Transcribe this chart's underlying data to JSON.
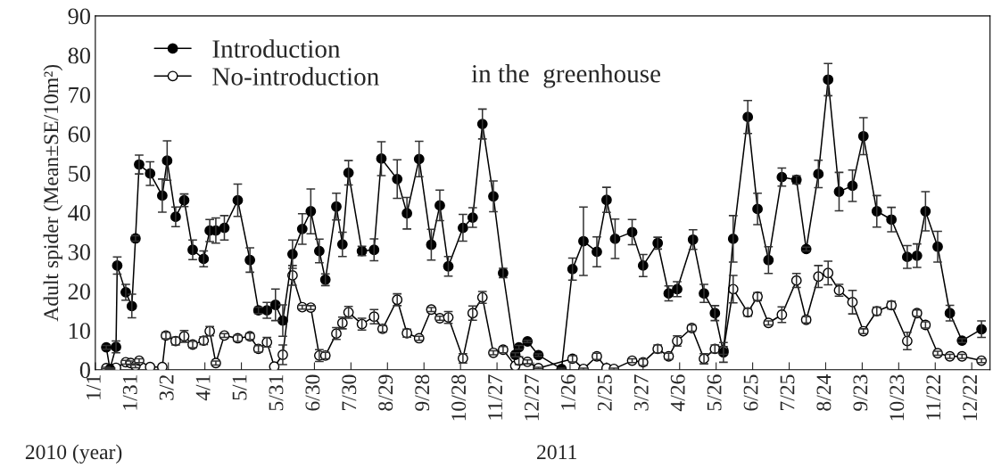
{
  "chart_data": {
    "type": "line",
    "ylabel": "Adult spider (Mean±SE/10m²)",
    "x": [
      "2010-01-10",
      "2010-01-13",
      "2010-01-18",
      "2010-01-19",
      "2010-01-26",
      "2010-01-31",
      "2010-02-03",
      "2010-02-06",
      "2010-02-15",
      "2010-02-25",
      "2010-03-01",
      "2010-03-08",
      "2010-03-15",
      "2010-03-22",
      "2010-03-31",
      "2010-04-05",
      "2010-04-10",
      "2010-04-17",
      "2010-04-28",
      "2010-05-08",
      "2010-05-15",
      "2010-05-22",
      "2010-05-29",
      "2010-06-04",
      "2010-06-12",
      "2010-06-20",
      "2010-06-27",
      "2010-07-04",
      "2010-07-09",
      "2010-07-18",
      "2010-07-23",
      "2010-07-28",
      "2010-08-08",
      "2010-08-18",
      "2010-08-24",
      "2010-09-06",
      "2010-09-14",
      "2010-09-24",
      "2010-10-04",
      "2010-10-11",
      "2010-10-18",
      "2010-10-30",
      "2010-11-07",
      "2010-11-15",
      "2010-11-24",
      "2010-12-02",
      "2010-12-12",
      "2010-12-15",
      "2010-12-22",
      "2010-12-31",
      "2011-01-19",
      "2011-01-28",
      "2011-02-06",
      "2011-02-17",
      "2011-02-25",
      "2011-03-04",
      "2011-03-18",
      "2011-03-27",
      "2011-04-08",
      "2011-04-17",
      "2011-04-24",
      "2011-05-07",
      "2011-05-16",
      "2011-05-25",
      "2011-06-01",
      "2011-06-09",
      "2011-06-21",
      "2011-06-29",
      "2011-07-08",
      "2011-07-19",
      "2011-07-31",
      "2011-08-08",
      "2011-08-18",
      "2011-08-26",
      "2011-09-04",
      "2011-09-15",
      "2011-09-24",
      "2011-10-05",
      "2011-10-17",
      "2011-10-30",
      "2011-11-07",
      "2011-11-14",
      "2011-11-24",
      "2011-12-04",
      "2011-12-14",
      "2011-12-30"
    ],
    "series": [
      {
        "name": "Introduction",
        "color": "#000000",
        "values": [
          5.7,
          0.2,
          5.8,
          26.5,
          19.7,
          16.2,
          33.4,
          52.2,
          49.9,
          44.3,
          53.2,
          38.9,
          43.1,
          30.5,
          28.2,
          35.4,
          35.4,
          36.1,
          43.1,
          27.9,
          15.1,
          15.1,
          16.5,
          12.5,
          29.4,
          35.8,
          40.3,
          30.2,
          22.9,
          41.5,
          31.9,
          50.1,
          30.2,
          30.5,
          53.7,
          48.5,
          39.8,
          53.6,
          31.8,
          41.8,
          26.3,
          36.1,
          38.7,
          62.5,
          44.1,
          24.6,
          3.8,
          5.7,
          7.2,
          3.7,
          0.2,
          25.6,
          32.7,
          30.0,
          43.2,
          33.3,
          35.0,
          26.5,
          32.2,
          19.4,
          20.5,
          33.1,
          19.4,
          14.4,
          4.4,
          33.3,
          64.3,
          40.9,
          27.9,
          49.0,
          48.3,
          30.7,
          49.8,
          73.8,
          45.3,
          46.8,
          59.4,
          40.3,
          38.2,
          28.7,
          29.0,
          40.3,
          31.3,
          14.4,
          7.4,
          10.3
        ],
        "errors": [
          0.5,
          0.2,
          1.5,
          2.2,
          2.0,
          3.0,
          0.7,
          2.4,
          3.0,
          4.2,
          5.0,
          2.5,
          1.6,
          2.5,
          2.0,
          2.8,
          3.2,
          3.1,
          4.1,
          3.1,
          0.8,
          2.0,
          4.0,
          4.0,
          3.6,
          3.9,
          5.7,
          3.0,
          1.5,
          3.4,
          3.1,
          3.1,
          1.2,
          2.8,
          4.3,
          4.9,
          4.0,
          4.5,
          3.9,
          3.9,
          2.5,
          3.4,
          2.5,
          3.8,
          3.9,
          1.2,
          0.5,
          0.5,
          0.3,
          0.3,
          0.2,
          2.8,
          8.7,
          3.8,
          3.2,
          5.0,
          3.2,
          2.8,
          1.5,
          1.9,
          1.9,
          2.5,
          2.3,
          1.9,
          2.5,
          5.9,
          4.2,
          4.0,
          3.4,
          2.3,
          1.0,
          0.5,
          3.5,
          4.1,
          4.9,
          4.0,
          4.7,
          4.0,
          3.1,
          2.9,
          3.0,
          5.0,
          3.9,
          2.0,
          0.5,
          2.1
        ]
      },
      {
        "name": "No-introduction",
        "color": "#000000",
        "x": [
          "2010-01-10",
          "2010-01-14",
          "2010-01-18",
          "2010-01-26",
          "2010-01-30",
          "2010-02-03",
          "2010-02-06",
          "2010-02-15",
          "2010-02-25",
          "2010-02-28",
          "2010-03-08",
          "2010-03-15",
          "2010-03-22",
          "2010-03-31",
          "2010-04-05",
          "2010-04-10",
          "2010-04-17",
          "2010-04-28",
          "2010-05-08",
          "2010-05-15",
          "2010-05-22",
          "2010-05-28",
          "2010-06-04",
          "2010-06-12",
          "2010-06-20",
          "2010-06-27",
          "2010-07-04",
          "2010-07-09",
          "2010-07-18",
          "2010-07-23",
          "2010-07-28",
          "2010-08-08",
          "2010-08-18",
          "2010-08-25",
          "2010-09-06",
          "2010-09-14",
          "2010-09-24",
          "2010-10-04",
          "2010-10-11",
          "2010-10-18",
          "2010-10-30",
          "2010-11-07",
          "2010-11-15",
          "2010-11-24",
          "2010-12-02",
          "2010-12-12",
          "2010-12-15",
          "2010-12-22",
          "2010-12-31",
          "2011-01-28",
          "2011-02-06",
          "2011-02-17",
          "2011-02-25",
          "2011-03-03",
          "2011-03-18",
          "2011-03-27",
          "2011-04-08",
          "2011-04-17",
          "2011-04-24",
          "2011-05-06",
          "2011-05-16",
          "2011-05-25",
          "2011-06-01",
          "2011-06-09",
          "2011-06-21",
          "2011-06-29",
          "2011-07-08",
          "2011-07-19",
          "2011-07-31",
          "2011-08-08",
          "2011-08-18",
          "2011-08-26",
          "2011-09-04",
          "2011-09-15",
          "2011-09-24",
          "2011-10-05",
          "2011-10-17",
          "2011-10-30",
          "2011-11-07",
          "2011-11-14",
          "2011-11-24",
          "2011-12-04",
          "2011-12-14",
          "2011-12-30"
        ],
        "values": [
          0.4,
          0.2,
          0.5,
          1.9,
          1.7,
          1.0,
          2.3,
          0.7,
          0.7,
          8.7,
          7.3,
          8.5,
          6.4,
          7.4,
          9.8,
          1.7,
          8.7,
          8.0,
          8.5,
          5.3,
          7.0,
          0.8,
          3.8,
          24.0,
          15.9,
          15.8,
          3.6,
          3.6,
          9.2,
          11.9,
          14.6,
          11.6,
          13.5,
          10.4,
          17.8,
          9.3,
          8.0,
          15.3,
          13.1,
          13.3,
          2.9,
          14.4,
          18.4,
          4.3,
          5.1,
          1.0,
          2.3,
          2.0,
          0.4,
          2.8,
          0.2,
          3.4,
          0.4,
          0.2,
          2.3,
          1.9,
          5.3,
          3.4,
          7.3,
          10.6,
          2.8,
          5.3,
          4.9,
          20.5,
          14.6,
          18.6,
          11.9,
          14.0,
          22.7,
          12.7,
          23.7,
          24.6,
          20.2,
          17.2,
          9.8,
          14.9,
          16.4,
          7.3,
          14.4,
          11.4,
          4.2,
          3.4,
          3.4,
          2.3
        ],
        "errors": [
          0.2,
          0.2,
          null,
          0.5,
          0.5,
          0.5,
          0.5,
          null,
          null,
          0.8,
          1.0,
          1.5,
          0.8,
          1.0,
          1.2,
          0.5,
          0.5,
          0.8,
          0.8,
          0.8,
          1.2,
          null,
          2.5,
          2.5,
          0.5,
          0.5,
          1.5,
          0.8,
          1.5,
          1.5,
          1.5,
          1.5,
          1.8,
          0.8,
          1.5,
          1.0,
          0.5,
          0.5,
          0.5,
          1.5,
          1.2,
          1.8,
          1.5,
          0.5,
          0.8,
          null,
          1.0,
          0.5,
          0.2,
          0.8,
          0.2,
          0.8,
          null,
          0.2,
          0.5,
          0.8,
          1.0,
          0.8,
          1.3,
          0.8,
          1.3,
          1.0,
          1.0,
          3.5,
          1.0,
          1.0,
          0.5,
          2.0,
          1.8,
          0.8,
          2.8,
          3.0,
          1.5,
          3.0,
          0.6,
          1.0,
          1.0,
          2.2,
          0.8,
          0.8,
          0.5,
          0.5,
          0.5,
          0.5
        ]
      }
    ],
    "xlim": [
      "2010-01-01",
      "2012-01-06"
    ],
    "xticks": [
      {
        "value": "2010-01-01",
        "label": "1/1"
      },
      {
        "value": "2010-01-31",
        "label": "1/31"
      },
      {
        "value": "2010-03-02",
        "label": "3/2"
      },
      {
        "value": "2010-04-01",
        "label": "4/1"
      },
      {
        "value": "2010-05-01",
        "label": "5/1"
      },
      {
        "value": "2010-05-31",
        "label": "5/31"
      },
      {
        "value": "2010-06-30",
        "label": "6/30"
      },
      {
        "value": "2010-07-30",
        "label": "7/30"
      },
      {
        "value": "2010-08-29",
        "label": "8/29"
      },
      {
        "value": "2010-09-28",
        "label": "9/28"
      },
      {
        "value": "2010-10-28",
        "label": "10/28"
      },
      {
        "value": "2010-11-27",
        "label": "11/27"
      },
      {
        "value": "2010-12-27",
        "label": "12/27"
      },
      {
        "value": "2011-01-26",
        "label": "1/26"
      },
      {
        "value": "2011-02-25",
        "label": "2/25"
      },
      {
        "value": "2011-03-27",
        "label": "3/27"
      },
      {
        "value": "2011-04-26",
        "label": "4/26"
      },
      {
        "value": "2011-05-26",
        "label": "5/26"
      },
      {
        "value": "2011-06-25",
        "label": "6/25"
      },
      {
        "value": "2011-07-25",
        "label": "7/25"
      },
      {
        "value": "2011-08-24",
        "label": "8/24"
      },
      {
        "value": "2011-09-23",
        "label": "9/23"
      },
      {
        "value": "2011-10-23",
        "label": "10/23"
      },
      {
        "value": "2011-11-22",
        "label": "11/22"
      },
      {
        "value": "2011-12-22",
        "label": "12/22"
      }
    ],
    "ylim": [
      0,
      90
    ],
    "yticks": [
      0,
      10,
      20,
      30,
      40,
      50,
      60,
      70,
      80,
      90
    ],
    "annotations": [
      "in the  greenhouse",
      "2010 (year)",
      "2011"
    ],
    "legend": "top left",
    "marker": "circle",
    "line_style": "solid",
    "grid": false
  }
}
